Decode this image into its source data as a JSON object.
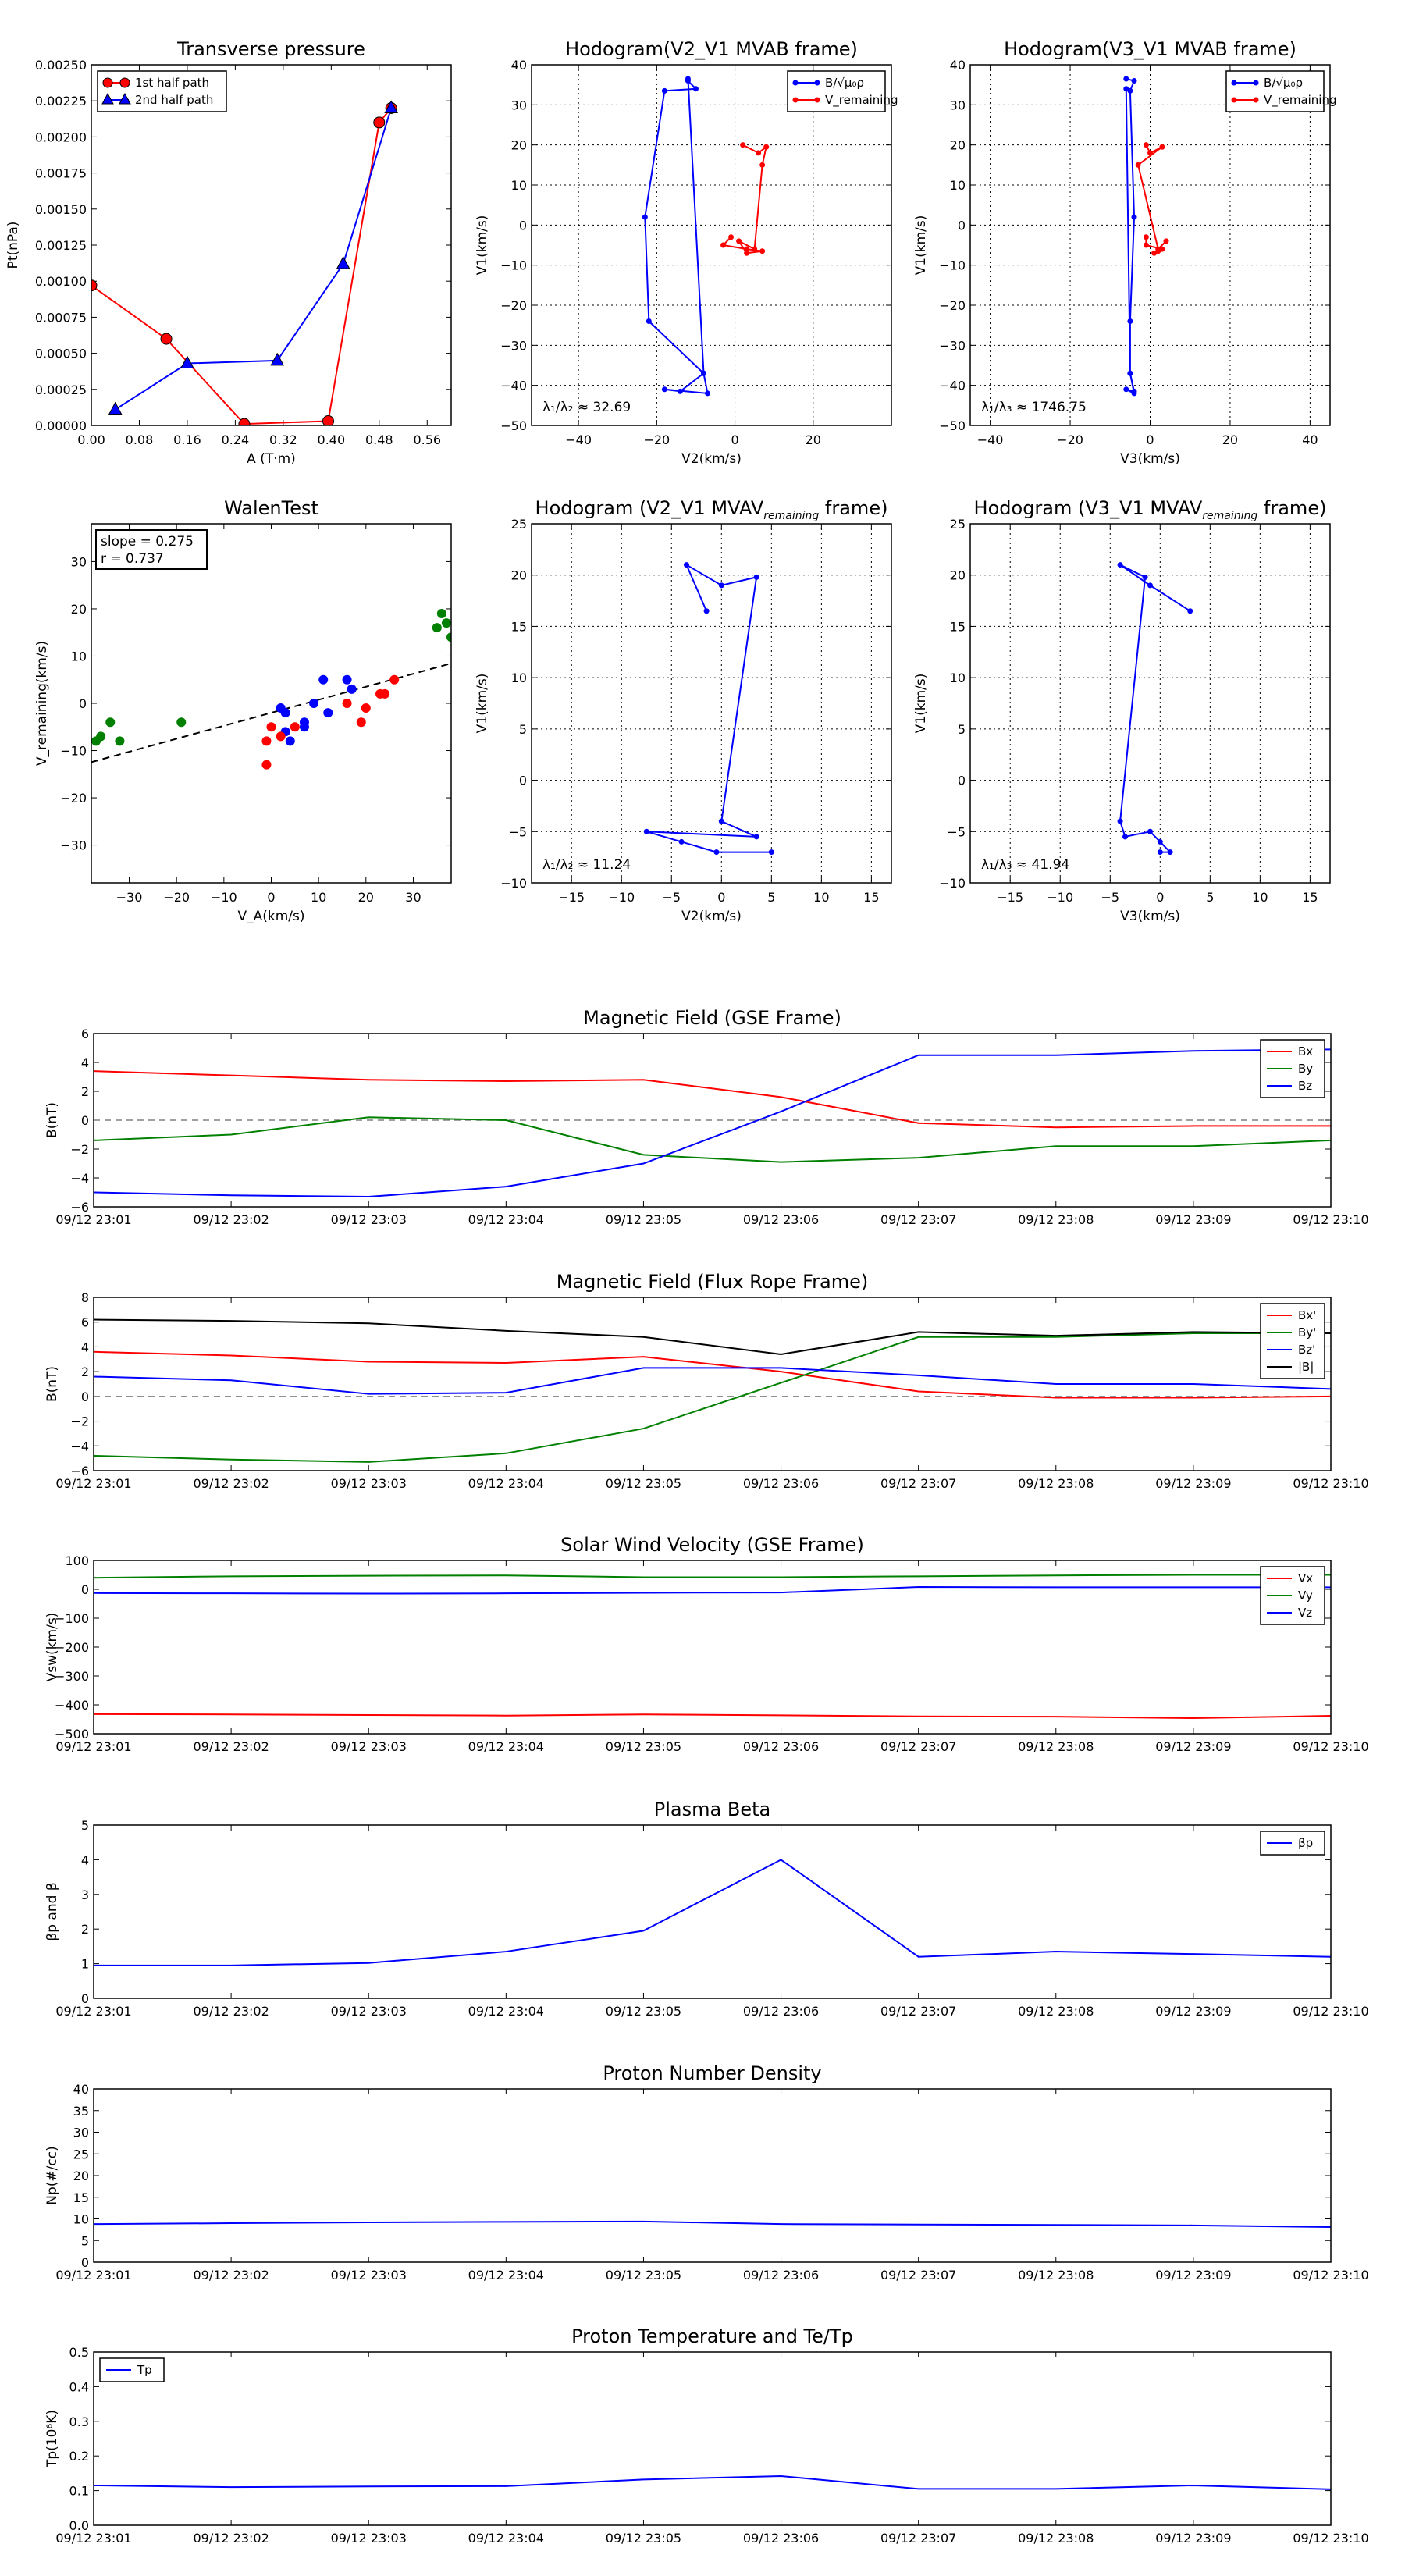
{
  "chart_data": [
    {
      "id": "transverse_pressure",
      "type": "line",
      "title": "Transverse pressure",
      "xlabel": "A (T·m)",
      "ylabel": "Pt(nPa)",
      "xlim": [
        0,
        0.6
      ],
      "ylim": [
        0,
        0.0025
      ],
      "xticks": [
        "0.00",
        "0.08",
        "0.16",
        "0.24",
        "0.32",
        "0.40",
        "0.48",
        "0.56"
      ],
      "xtick_values": [
        0,
        0.08,
        0.16,
        0.24,
        0.32,
        0.4,
        0.48,
        0.56
      ],
      "yticks": [
        "0.00000",
        "0.00025",
        "0.00050",
        "0.00075",
        "0.00100",
        "0.00125",
        "0.00150",
        "0.00175",
        "0.00200",
        "0.00225",
        "0.00250"
      ],
      "ytick_values": [
        0,
        0.00025,
        0.0005,
        0.00075,
        0.001,
        0.00125,
        0.0015,
        0.00175,
        0.002,
        0.00225,
        0.0025
      ],
      "grid": false,
      "legend_position": "top-left",
      "series": [
        {
          "name": "1st half path",
          "color": "#ff0000",
          "marker": "circle",
          "x": [
            0.0,
            0.125,
            0.255,
            0.395,
            0.48,
            0.5
          ],
          "y": [
            0.00097,
            0.0006,
            1e-05,
            3e-05,
            0.0021,
            0.0022
          ]
        },
        {
          "name": "2nd half path",
          "color": "#0000ff",
          "marker": "triangle",
          "x": [
            0.04,
            0.16,
            0.31,
            0.42,
            0.5
          ],
          "y": [
            0.00011,
            0.00043,
            0.00045,
            0.00112,
            0.0022
          ]
        }
      ]
    },
    {
      "id": "hodogram_v2_v1",
      "type": "line",
      "title": "Hodogram(V2_V1 MVAB frame)",
      "xlabel": "V2(km/s)",
      "ylabel": "V1(km/s)",
      "xlim": [
        -52,
        40
      ],
      "ylim": [
        -50,
        40
      ],
      "xticks": [
        "−40",
        "−20",
        "0",
        "20"
      ],
      "xtick_values": [
        -40,
        -20,
        0,
        20
      ],
      "yticks": [
        "−50",
        "−40",
        "−30",
        "−20",
        "−10",
        "0",
        "10",
        "20",
        "30",
        "40"
      ],
      "ytick_values": [
        -50,
        -40,
        -30,
        -20,
        -10,
        0,
        10,
        20,
        30,
        40
      ],
      "grid": true,
      "legend_position": "top-right",
      "annotation": "λ₁/λ₂ ≈ 32.69",
      "series": [
        {
          "name": "B/√μ₀ρ",
          "color": "#0000ff",
          "x": [
            -12,
            -10,
            -18,
            -23,
            -22,
            -8,
            -14,
            -18,
            -7,
            -8,
            -12
          ],
          "y": [
            36,
            34,
            33.5,
            2,
            -24,
            -37,
            -41.5,
            -41,
            -42,
            -37,
            36.5
          ]
        },
        {
          "name": "V_remaining",
          "color": "#ff0000",
          "x": [
            2,
            6,
            8,
            7,
            5,
            1,
            3,
            7,
            3,
            -3,
            -1
          ],
          "y": [
            20,
            18,
            19.5,
            15,
            -6,
            -4,
            -7,
            -6.5,
            -6,
            -5,
            -3
          ]
        }
      ]
    },
    {
      "id": "hodogram_v3_v1",
      "type": "line",
      "title": "Hodogram(V3_V1 MVAB frame)",
      "xlabel": "V3(km/s)",
      "ylabel": "V1(km/s)",
      "xlim": [
        -45,
        45
      ],
      "ylim": [
        -50,
        40
      ],
      "xticks": [
        "−40",
        "−20",
        "0",
        "20",
        "40"
      ],
      "xtick_values": [
        -40,
        -20,
        0,
        20,
        40
      ],
      "yticks": [
        "−50",
        "−40",
        "−30",
        "−20",
        "−10",
        "0",
        "10",
        "20",
        "30",
        "40"
      ],
      "ytick_values": [
        -50,
        -40,
        -30,
        -20,
        -10,
        0,
        10,
        20,
        30,
        40
      ],
      "grid": true,
      "legend_position": "top-right",
      "annotation": "λ₁/λ₃ ≈ 1746.75",
      "series": [
        {
          "name": "B/√μ₀ρ",
          "color": "#0000ff",
          "x": [
            -6,
            -4,
            -5,
            -4,
            -5,
            -5,
            -4,
            -6,
            -4,
            -5,
            -6
          ],
          "y": [
            36.5,
            36,
            33.5,
            2,
            -24,
            -37,
            -41.5,
            -41,
            -42,
            -37,
            34
          ]
        },
        {
          "name": "V_remaining",
          "color": "#ff0000",
          "x": [
            -1,
            0,
            3,
            -3,
            2,
            4,
            1,
            2,
            3,
            -1,
            -1
          ],
          "y": [
            20,
            18,
            19.5,
            15,
            -6,
            -4,
            -7,
            -6.5,
            -6,
            -5,
            -3
          ]
        }
      ]
    },
    {
      "id": "walen_test",
      "type": "scatter",
      "title": "WalenTest",
      "xlabel": "V_A(km/s)",
      "ylabel": "V_remaining(km/s)",
      "xlim": [
        -38,
        38
      ],
      "ylim": [
        -38,
        38
      ],
      "xticks": [
        "−30",
        "−20",
        "−10",
        "0",
        "10",
        "20",
        "30"
      ],
      "xtick_values": [
        -30,
        -20,
        -10,
        0,
        10,
        20,
        30
      ],
      "yticks": [
        "−30",
        "−20",
        "−10",
        "0",
        "10",
        "20",
        "30"
      ],
      "ytick_values": [
        -30,
        -20,
        -10,
        0,
        10,
        20,
        30
      ],
      "grid": false,
      "textbox": [
        "slope = 0.275",
        "r = 0.737"
      ],
      "fit_line": {
        "slope": 0.275,
        "intercept": -2
      },
      "series": [
        {
          "name": "green",
          "color": "#008000",
          "x": [
            -37,
            -36,
            -34,
            -32,
            -19,
            35,
            36,
            37,
            38
          ],
          "y": [
            -8,
            -7,
            -4,
            -8,
            -4,
            16,
            19,
            17,
            14
          ]
        },
        {
          "name": "blue",
          "color": "#0000ff",
          "x": [
            2,
            3,
            3,
            4,
            7,
            7,
            9,
            11,
            12,
            16,
            17
          ],
          "y": [
            -1,
            -2,
            -6,
            -8,
            -4,
            -5,
            0,
            5,
            -2,
            5,
            3
          ]
        },
        {
          "name": "red",
          "color": "#ff0000",
          "x": [
            -1,
            -1,
            0,
            2,
            5,
            16,
            19,
            20,
            23,
            24,
            26
          ],
          "y": [
            -13,
            -8,
            -5,
            -7,
            -5,
            0,
            -4,
            -1,
            2,
            2,
            5
          ]
        }
      ]
    },
    {
      "id": "hodogram_v2_v1_mvav",
      "type": "line",
      "title": "Hodogram (V2_V1 MVAV",
      "title_sub": "remaining",
      "title_end": " frame)",
      "xlabel": "V2(km/s)",
      "ylabel": "V1(km/s)",
      "xlim": [
        -19,
        17
      ],
      "ylim": [
        -10,
        25
      ],
      "xticks": [
        "−15",
        "−10",
        "−5",
        "0",
        "5",
        "10",
        "15"
      ],
      "xtick_values": [
        -15,
        -10,
        -5,
        0,
        5,
        10,
        15
      ],
      "yticks": [
        "−10",
        "−5",
        "0",
        "5",
        "10",
        "15",
        "20",
        "25"
      ],
      "ytick_values": [
        -10,
        -5,
        0,
        5,
        10,
        15,
        20,
        25
      ],
      "grid": true,
      "annotation": "λ₁/λ₂ ≈ 11.24",
      "series": [
        {
          "name": "",
          "color": "#0000ff",
          "x": [
            -1.5,
            -3.5,
            0,
            3.5,
            0,
            3.5,
            -7.5,
            -4,
            -0.5,
            5
          ],
          "y": [
            16.5,
            21,
            19,
            19.8,
            -4,
            -5.5,
            -5,
            -6,
            -7,
            -7
          ]
        }
      ]
    },
    {
      "id": "hodogram_v3_v1_mvav",
      "type": "line",
      "title": "Hodogram (V3_V1 MVAV",
      "title_sub": "remaining",
      "title_end": " frame)",
      "xlabel": "V3(km/s)",
      "ylabel": "V1(km/s)",
      "xlim": [
        -19,
        17
      ],
      "ylim": [
        -10,
        25
      ],
      "xticks": [
        "−15",
        "−10",
        "−5",
        "0",
        "5",
        "10",
        "15"
      ],
      "xtick_values": [
        -15,
        -10,
        -5,
        0,
        5,
        10,
        15
      ],
      "yticks": [
        "−10",
        "−5",
        "0",
        "5",
        "10",
        "15",
        "20",
        "25"
      ],
      "ytick_values": [
        -10,
        -5,
        0,
        5,
        10,
        15,
        20,
        25
      ],
      "grid": true,
      "annotation": "λ₁/λ₃ ≈ 41.94",
      "series": [
        {
          "name": "",
          "color": "#0000ff",
          "x": [
            3,
            -1,
            -4,
            -1.5,
            -4,
            -3.5,
            -1,
            0,
            1,
            0
          ],
          "y": [
            16.5,
            19,
            21,
            19.8,
            -4,
            -5.5,
            -5,
            -6,
            -7,
            -7
          ]
        }
      ]
    },
    {
      "id": "magnetic_field_gse",
      "type": "line",
      "title": "Magnetic Field (GSE Frame)",
      "xlabel": "",
      "ylabel": "B(nT)",
      "x": [
        "09/12 23:01",
        "09/12 23:02",
        "09/12 23:03",
        "09/12 23:04",
        "09/12 23:05",
        "09/12 23:06",
        "09/12 23:07",
        "09/12 23:08",
        "09/12 23:09",
        "09/12 23:10"
      ],
      "ylim": [
        -6,
        6
      ],
      "yticks": [
        "−6",
        "−4",
        "−2",
        "0",
        "2",
        "4",
        "6"
      ],
      "ytick_values": [
        -6,
        -4,
        -2,
        0,
        2,
        4,
        6
      ],
      "zero_line": true,
      "legend_position": "top-right",
      "series": [
        {
          "name": "Bx",
          "color": "#ff0000",
          "values": [
            3.4,
            3.1,
            2.8,
            2.7,
            2.8,
            1.6,
            -0.2,
            -0.5,
            -0.4,
            -0.4
          ]
        },
        {
          "name": "By",
          "color": "#008000",
          "values": [
            -1.4,
            -1.0,
            0.2,
            0.0,
            -2.4,
            -2.9,
            -2.6,
            -1.8,
            -1.8,
            -1.4
          ]
        },
        {
          "name": "Bz",
          "color": "#0000ff",
          "values": [
            -5.0,
            -5.2,
            -5.3,
            -4.6,
            -3.0,
            0.6,
            4.5,
            4.5,
            4.8,
            4.9
          ]
        }
      ]
    },
    {
      "id": "magnetic_field_flux_rope",
      "type": "line",
      "title": "Magnetic Field (Flux Rope Frame)",
      "xlabel": "",
      "ylabel": "B(nT)",
      "x": [
        "09/12 23:01",
        "09/12 23:02",
        "09/12 23:03",
        "09/12 23:04",
        "09/12 23:05",
        "09/12 23:06",
        "09/12 23:07",
        "09/12 23:08",
        "09/12 23:09",
        "09/12 23:10"
      ],
      "ylim": [
        -6,
        8
      ],
      "yticks": [
        "−6",
        "−4",
        "−2",
        "0",
        "2",
        "4",
        "6",
        "8"
      ],
      "ytick_values": [
        -6,
        -4,
        -2,
        0,
        2,
        4,
        6,
        8
      ],
      "zero_line": true,
      "legend_position": "top-right",
      "series": [
        {
          "name": "Bx'",
          "color": "#ff0000",
          "values": [
            3.6,
            3.3,
            2.8,
            2.7,
            3.2,
            2.0,
            0.4,
            -0.1,
            -0.1,
            0.0
          ]
        },
        {
          "name": "By'",
          "color": "#008000",
          "values": [
            -4.8,
            -5.1,
            -5.3,
            -4.6,
            -2.6,
            1.1,
            4.8,
            4.8,
            5.1,
            5.1
          ]
        },
        {
          "name": "Bz'",
          "color": "#0000ff",
          "values": [
            1.6,
            1.3,
            0.2,
            0.3,
            2.3,
            2.3,
            1.7,
            1.0,
            1.0,
            0.6
          ]
        },
        {
          "name": "|B|",
          "color": "#000000",
          "values": [
            6.2,
            6.1,
            5.9,
            5.3,
            4.8,
            3.4,
            5.2,
            4.9,
            5.2,
            5.1
          ]
        }
      ]
    },
    {
      "id": "solar_wind_velocity",
      "type": "line",
      "title": "Solar Wind Velocity (GSE Frame)",
      "xlabel": "",
      "ylabel": "Vsw(km/s)",
      "x": [
        "09/12 23:01",
        "09/12 23:02",
        "09/12 23:03",
        "09/12 23:04",
        "09/12 23:05",
        "09/12 23:06",
        "09/12 23:07",
        "09/12 23:08",
        "09/12 23:09",
        "09/12 23:10"
      ],
      "ylim": [
        -500,
        100
      ],
      "yticks": [
        "−500",
        "−400",
        "−300",
        "−200",
        "−100",
        "0",
        "100"
      ],
      "ytick_values": [
        -500,
        -400,
        -300,
        -200,
        -100,
        0,
        100
      ],
      "legend_position": "top-right",
      "series": [
        {
          "name": "Vx",
          "color": "#ff0000",
          "values": [
            -432,
            -433,
            -435,
            -437,
            -433,
            -436,
            -440,
            -441,
            -446,
            -438
          ]
        },
        {
          "name": "Vy",
          "color": "#008000",
          "values": [
            40,
            45,
            47,
            48,
            42,
            42,
            45,
            48,
            50,
            50
          ]
        },
        {
          "name": "Vz",
          "color": "#0000ff",
          "values": [
            -13,
            -14,
            -15,
            -14,
            -12,
            -11,
            8,
            7,
            7,
            7
          ]
        }
      ]
    },
    {
      "id": "plasma_beta",
      "type": "line",
      "title": "Plasma Beta",
      "xlabel": "",
      "ylabel": "βp and β",
      "x": [
        "09/12 23:01",
        "09/12 23:02",
        "09/12 23:03",
        "09/12 23:04",
        "09/12 23:05",
        "09/12 23:06",
        "09/12 23:07",
        "09/12 23:08",
        "09/12 23:09",
        "09/12 23:10"
      ],
      "ylim": [
        0,
        5
      ],
      "yticks": [
        "0",
        "1",
        "2",
        "3",
        "4",
        "5"
      ],
      "ytick_values": [
        0,
        1,
        2,
        3,
        4,
        5
      ],
      "legend_position": "top-right",
      "series": [
        {
          "name": "βp",
          "color": "#0000ff",
          "values": [
            0.95,
            0.95,
            1.02,
            1.35,
            1.95,
            4.0,
            1.2,
            1.35,
            1.28,
            1.2
          ]
        }
      ]
    },
    {
      "id": "proton_number_density",
      "type": "line",
      "title": "Proton Number Density",
      "xlabel": "",
      "ylabel": "Np(#/cc)",
      "x": [
        "09/12 23:01",
        "09/12 23:02",
        "09/12 23:03",
        "09/12 23:04",
        "09/12 23:05",
        "09/12 23:06",
        "09/12 23:07",
        "09/12 23:08",
        "09/12 23:09",
        "09/12 23:10"
      ],
      "ylim": [
        0,
        40
      ],
      "yticks": [
        "0",
        "5",
        "10",
        "15",
        "20",
        "25",
        "30",
        "35",
        "40"
      ],
      "ytick_values": [
        0,
        5,
        10,
        15,
        20,
        25,
        30,
        35,
        40
      ],
      "series": [
        {
          "name": "",
          "color": "#0000ff",
          "values": [
            8.8,
            9.0,
            9.2,
            9.3,
            9.4,
            8.8,
            8.7,
            8.6,
            8.5,
            8.1
          ]
        }
      ]
    },
    {
      "id": "proton_temperature",
      "type": "line",
      "title": "Proton Temperature and Te/Tp",
      "xlabel": "",
      "ylabel": "Tp(10⁶K)",
      "x": [
        "09/12 23:01",
        "09/12 23:02",
        "09/12 23:03",
        "09/12 23:04",
        "09/12 23:05",
        "09/12 23:06",
        "09/12 23:07",
        "09/12 23:08",
        "09/12 23:09",
        "09/12 23:10"
      ],
      "ylim": [
        0,
        0.5
      ],
      "yticks": [
        "0.0",
        "0.1",
        "0.2",
        "0.3",
        "0.4",
        "0.5"
      ],
      "ytick_values": [
        0,
        0.1,
        0.2,
        0.3,
        0.4,
        0.5
      ],
      "legend_position": "top-left",
      "series": [
        {
          "name": "Tp",
          "color": "#0000ff",
          "values": [
            0.115,
            0.11,
            0.112,
            0.113,
            0.132,
            0.142,
            0.105,
            0.105,
            0.115,
            0.104
          ]
        }
      ]
    }
  ]
}
